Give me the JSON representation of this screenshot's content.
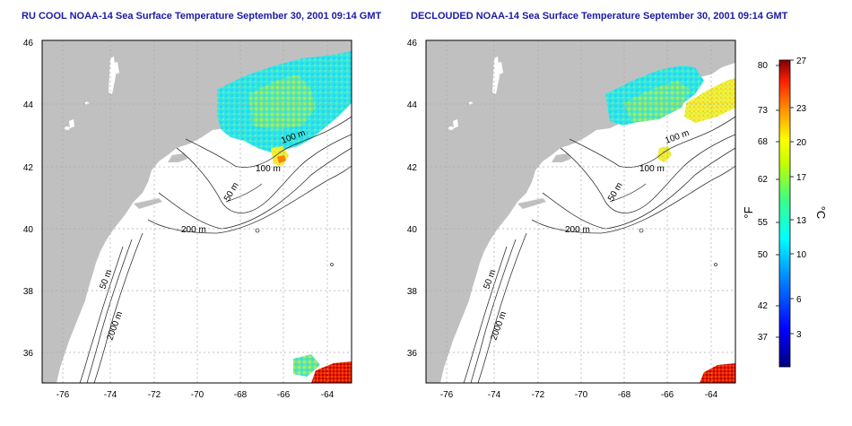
{
  "maps": [
    {
      "title": "RU COOL NOAA-14 Sea Surface Temperature September 30, 2001 09:14 GMT",
      "x_ticks": [
        "-76",
        "-74",
        "-72",
        "-70",
        "-68",
        "-66",
        "-64"
      ],
      "y_ticks": [
        "36",
        "38",
        "40",
        "42",
        "44",
        "46"
      ],
      "contour_labels": [
        "100 m",
        "100 m",
        "50 m",
        "200 m",
        "50 m",
        "2000 m"
      ]
    },
    {
      "title": "DECLOUDED NOAA-14 Sea Surface Temperature September 30, 2001 09:14 GMT",
      "x_ticks": [
        "-76",
        "-74",
        "-72",
        "-70",
        "-68",
        "-66",
        "-64"
      ],
      "y_ticks": [
        "36",
        "38",
        "40",
        "42",
        "44",
        "46"
      ],
      "contour_labels": [
        "100 m",
        "100 m",
        "50 m",
        "200 m",
        "50 m",
        "2000 m"
      ]
    }
  ],
  "colorbar": {
    "fahrenheit_ticks": [
      "80",
      "73",
      "68",
      "62",
      "55",
      "50",
      "42",
      "37"
    ],
    "celsius_ticks": [
      "27",
      "23",
      "20",
      "17",
      "13",
      "10",
      "6",
      "3"
    ],
    "fahrenheit_unit": "°F",
    "celsius_unit": "°C"
  },
  "colors": {
    "land": "#c0c0c0",
    "ocean": "#ffffff",
    "title": "#1a1aa6",
    "gridline": "#aaaaaa"
  }
}
